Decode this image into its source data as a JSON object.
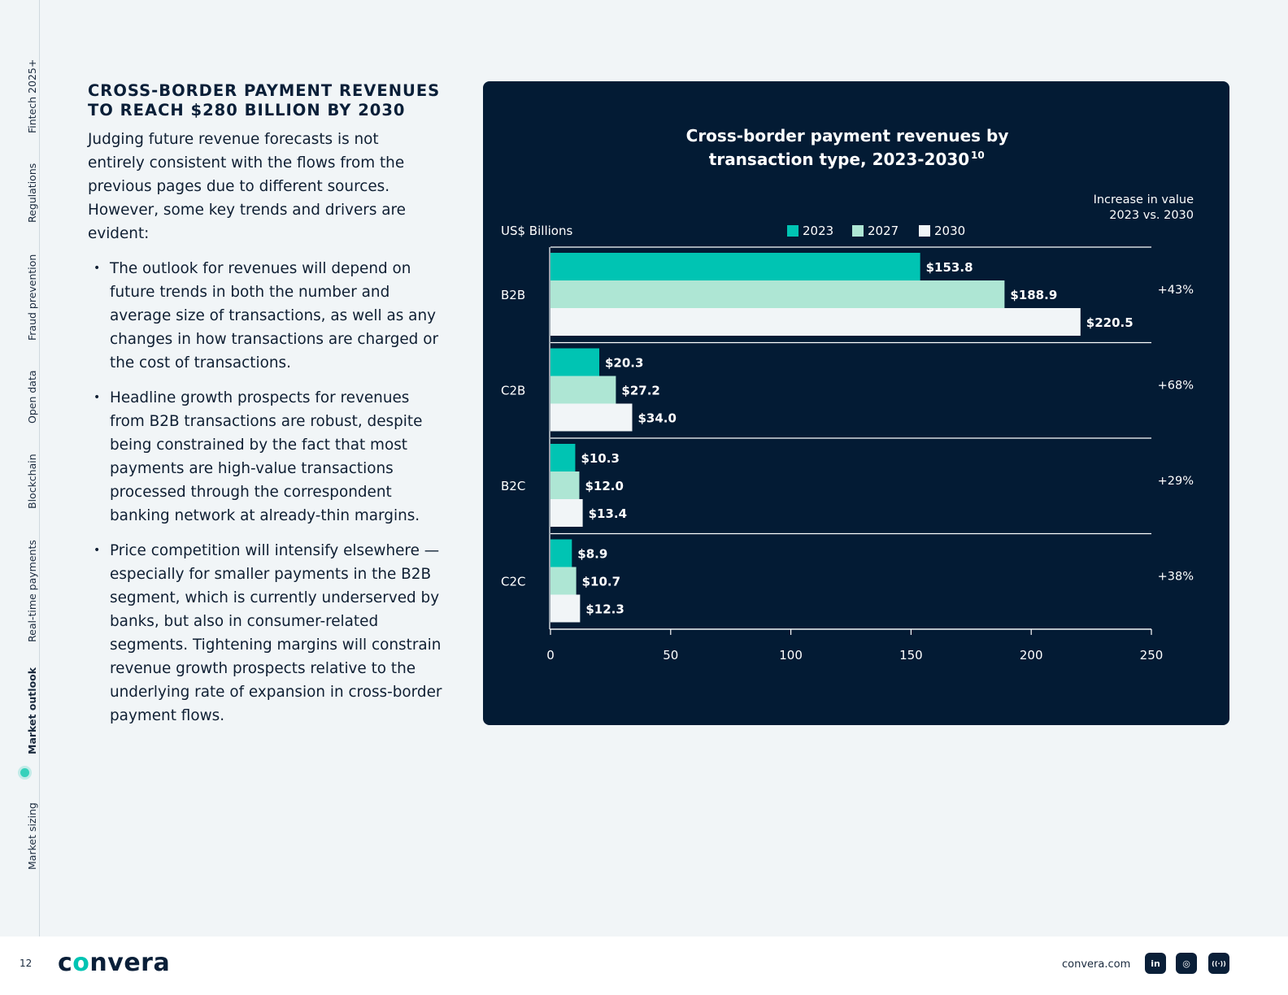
{
  "sidebar": {
    "items": [
      {
        "label": "Fintech 2025+"
      },
      {
        "label": "Regulations"
      },
      {
        "label": "Fraud prevention"
      },
      {
        "label": "Open data"
      },
      {
        "label": "Blockchain"
      },
      {
        "label": "Real-time payments"
      },
      {
        "label": "Market outlook"
      },
      {
        "label": "Market sizing"
      }
    ],
    "active": "Market outlook"
  },
  "article": {
    "heading_line1": "CROSS-BORDER PAYMENT REVENUES",
    "heading_line2": "TO REACH $280 BILLION BY 2030",
    "intro": "Judging future revenue forecasts is not entirely consistent with the flows from the previous pages due to different sources. However, some key trends and drivers are evident:",
    "bullets": [
      "The outlook for revenues will depend on future trends in both the number and average size of transactions, as well as any changes in how transactions are charged or the cost of transactions.",
      "Headline growth prospects for revenues from B2B transactions are robust, despite being constrained by the fact that most payments are high-value transactions processed through the correspondent banking network at already-thin margins.",
      "Price competition will intensify elsewhere — especially for smaller payments in the B2B segment, which is currently underserved by banks, but also in consumer-related segments. Tightening margins will constrain revenue growth prospects relative to the underlying rate of expansion in cross-border payment flows."
    ]
  },
  "chart_data": {
    "type": "bar",
    "orientation": "horizontal",
    "title_line1": "Cross-border payment revenues by",
    "title_line2": "transaction type, 2023-2030",
    "title_footnote": "10",
    "unit_label": "US$ Billions",
    "increase_header_line1": "Increase in value",
    "increase_header_line2": "2023 vs. 2030",
    "categories": [
      "B2B",
      "C2B",
      "B2C",
      "C2C"
    ],
    "series": [
      {
        "name": "2023",
        "color": "#00c4b3",
        "values": [
          153.8,
          20.3,
          10.3,
          8.9
        ],
        "labels": [
          "$153.8",
          "$20.3",
          "$10.3",
          "$8.9"
        ]
      },
      {
        "name": "2027",
        "color": "#aee6d4",
        "values": [
          188.9,
          27.2,
          12.0,
          10.7
        ],
        "labels": [
          "$188.9",
          "$27.2",
          "$12.0",
          "$10.7"
        ]
      },
      {
        "name": "2030",
        "color": "#f1f5f7",
        "values": [
          220.5,
          34.0,
          13.4,
          12.3
        ],
        "labels": [
          "$220.5",
          "$34.0",
          "$13.4",
          "$12.3"
        ]
      }
    ],
    "increase": [
      "+43%",
      "+68%",
      "+29%",
      "+38%"
    ],
    "xlim": [
      0,
      250
    ],
    "xticks": [
      0,
      50,
      100,
      150,
      200,
      250
    ],
    "xtick_labels": [
      "0",
      "50",
      "100",
      "150",
      "200",
      "250"
    ],
    "legend_position": "top-center",
    "grid": false
  },
  "footer": {
    "page_number": "12",
    "logo_pre": "c",
    "logo_accent": "o",
    "logo_post": "nvera",
    "site": "convera.com",
    "social": [
      {
        "icon": "linkedin-icon",
        "glyph": "in"
      },
      {
        "icon": "instagram-icon",
        "glyph": "◎"
      },
      {
        "icon": "podcast-icon",
        "glyph": "((·))"
      }
    ]
  }
}
